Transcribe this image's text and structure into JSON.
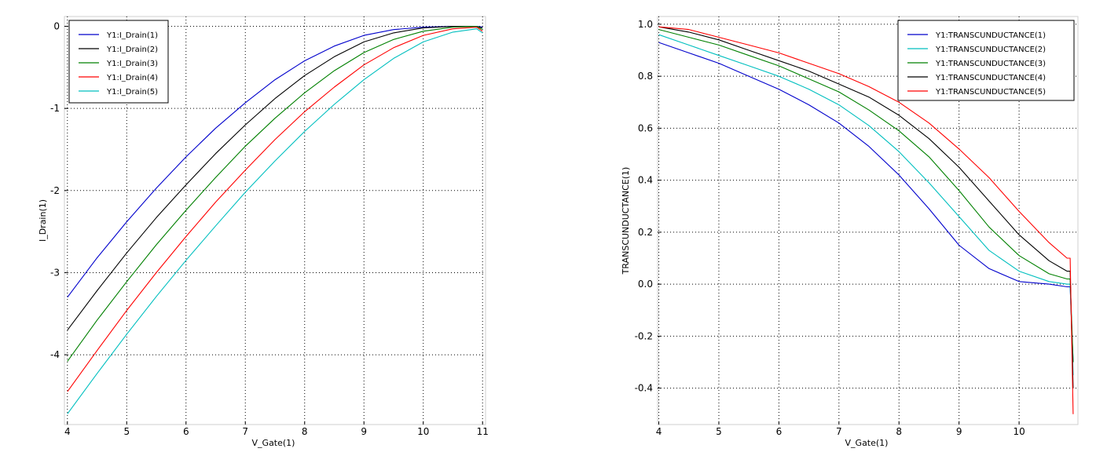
{
  "chart_data": [
    {
      "type": "line",
      "xlabel": "V_Gate(1)",
      "ylabel": "I_Drain(1)",
      "xlim": [
        3.95,
        11.05
      ],
      "ylim": [
        -4.85,
        0.12
      ],
      "xticks": [
        4,
        5,
        6,
        7,
        8,
        9,
        10,
        11
      ],
      "yticks": [
        0,
        -1,
        -2,
        -3,
        -4
      ],
      "ytick_labels": [
        "0",
        "-1",
        "-2",
        "-3",
        "-4"
      ],
      "grid": true,
      "legend_position": "top-left",
      "x": [
        4,
        4.5,
        5,
        5.5,
        6,
        6.5,
        7,
        7.5,
        8,
        8.5,
        9,
        9.5,
        10,
        10.5,
        10.9,
        11
      ],
      "series": [
        {
          "name": "Y1:I_Drain(1)",
          "color": "#0000cc",
          "values": [
            -3.3,
            -2.82,
            -2.38,
            -1.97,
            -1.59,
            -1.24,
            -0.93,
            -0.65,
            -0.42,
            -0.24,
            -0.11,
            -0.04,
            -0.01,
            0.0,
            0.0,
            -0.01
          ]
        },
        {
          "name": "Y1:I_Drain(2)",
          "color": "#000000",
          "values": [
            -3.7,
            -3.22,
            -2.76,
            -2.33,
            -1.93,
            -1.55,
            -1.2,
            -0.88,
            -0.6,
            -0.37,
            -0.19,
            -0.08,
            -0.02,
            0.0,
            0.0,
            -0.02
          ]
        },
        {
          "name": "Y1:I_Drain(3)",
          "color": "#008000",
          "values": [
            -4.08,
            -3.58,
            -3.11,
            -2.66,
            -2.24,
            -1.84,
            -1.46,
            -1.12,
            -0.81,
            -0.54,
            -0.32,
            -0.16,
            -0.06,
            -0.01,
            0.0,
            -0.04
          ]
        },
        {
          "name": "Y1:I_Drain(4)",
          "color": "#ff0000",
          "values": [
            -4.45,
            -3.95,
            -3.46,
            -3.0,
            -2.56,
            -2.14,
            -1.75,
            -1.38,
            -1.04,
            -0.74,
            -0.47,
            -0.26,
            -0.11,
            -0.03,
            -0.01,
            -0.06
          ]
        },
        {
          "name": "Y1:I_Drain(5)",
          "color": "#00bfbf",
          "values": [
            -4.72,
            -4.23,
            -3.75,
            -3.29,
            -2.85,
            -2.43,
            -2.02,
            -1.64,
            -1.28,
            -0.95,
            -0.65,
            -0.39,
            -0.19,
            -0.07,
            -0.03,
            -0.08
          ]
        }
      ]
    },
    {
      "type": "line",
      "xlabel": "V_Gate(1)",
      "ylabel": "TRANSCUNDUCTANCE(1)",
      "xlim": [
        3.98,
        10.98
      ],
      "ylim": [
        -0.54,
        1.03
      ],
      "xticks": [
        4,
        5,
        6,
        7,
        8,
        9,
        10
      ],
      "yticks": [
        1.0,
        0.8,
        0.6,
        0.4,
        0.2,
        0.0,
        -0.2,
        -0.4
      ],
      "ytick_labels": [
        "1.0",
        "0.8",
        "0.6",
        "0.4",
        "0.2",
        "0.0",
        "-0.2",
        "-0.4"
      ],
      "grid": true,
      "legend_position": "top-right",
      "x": [
        4,
        4.5,
        5,
        5.5,
        6,
        6.5,
        7,
        7.5,
        8,
        8.5,
        9,
        9.5,
        10,
        10.5,
        10.8,
        10.85,
        10.9
      ],
      "series": [
        {
          "name": "Y1:TRANSCUNDUCTANCE(1)",
          "color": "#0000cc",
          "values": [
            0.93,
            0.89,
            0.85,
            0.8,
            0.75,
            0.69,
            0.62,
            0.53,
            0.42,
            0.29,
            0.15,
            0.06,
            0.01,
            0.0,
            -0.01,
            -0.01,
            -0.3
          ]
        },
        {
          "name": "Y1:TRANSCUNDUCTANCE(2)",
          "color": "#00bfbf",
          "values": [
            0.96,
            0.92,
            0.88,
            0.84,
            0.8,
            0.75,
            0.69,
            0.61,
            0.51,
            0.39,
            0.26,
            0.13,
            0.05,
            0.01,
            0.0,
            0.0,
            -0.35
          ]
        },
        {
          "name": "Y1:TRANSCUNDUCTANCE(3)",
          "color": "#008000",
          "values": [
            0.98,
            0.95,
            0.92,
            0.88,
            0.84,
            0.79,
            0.74,
            0.67,
            0.59,
            0.49,
            0.36,
            0.22,
            0.11,
            0.04,
            0.02,
            0.02,
            -0.3
          ]
        },
        {
          "name": "Y1:TRANSCUNDUCTANCE(4)",
          "color": "#000000",
          "values": [
            0.99,
            0.97,
            0.94,
            0.9,
            0.86,
            0.82,
            0.77,
            0.72,
            0.65,
            0.56,
            0.45,
            0.32,
            0.19,
            0.09,
            0.05,
            0.05,
            -0.4
          ]
        },
        {
          "name": "Y1:TRANSCUNDUCTANCE(5)",
          "color": "#ff0000",
          "values": [
            0.99,
            0.98,
            0.95,
            0.92,
            0.89,
            0.85,
            0.81,
            0.76,
            0.7,
            0.62,
            0.52,
            0.41,
            0.28,
            0.16,
            0.1,
            0.1,
            -0.5
          ]
        }
      ]
    }
  ]
}
